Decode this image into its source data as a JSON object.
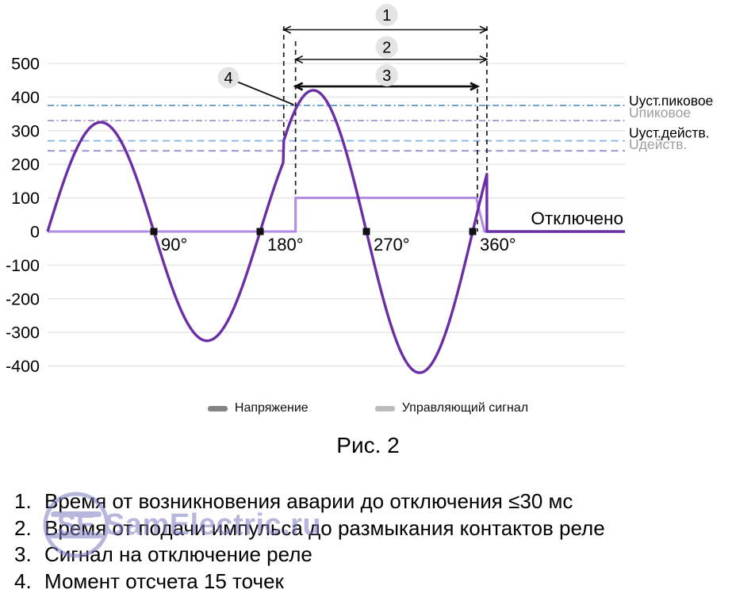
{
  "chart_data": {
    "type": "line",
    "title": "Рис. 2",
    "grid": true,
    "y_axis": {
      "min": -400,
      "max": 500,
      "ticks": [
        500,
        400,
        300,
        200,
        100,
        0,
        -100,
        -200,
        -300,
        -400
      ]
    },
    "x_axis": {
      "span_degrees": 489,
      "tick_degrees": [
        90,
        180,
        270,
        360
      ],
      "tick_labels": [
        "90°",
        "180°",
        "270°",
        "360°"
      ]
    },
    "series": [
      {
        "name": "Напряжение",
        "type": "sine",
        "color": "#6c2ea6",
        "normal_amplitude": 325,
        "fault_amplitude": 420,
        "cycles_per_360deg": 2,
        "fault_start_deg": 200,
        "cutoff_deg": 372
      },
      {
        "name": "Управляющий сигнал",
        "type": "step",
        "color": "#b28ce0",
        "level": 100,
        "pulse_on_deg": 210,
        "rampdown_start_deg": 363,
        "rampdown_end_deg": 370
      }
    ],
    "thresholds": [
      {
        "label": "Uуст.пиковое",
        "value": 375,
        "color": "#4583bb",
        "dash": "dashdot",
        "label_color": "#000000"
      },
      {
        "label": "Uпиковое",
        "value": 330,
        "color": "#9282c4",
        "dash": "dashdot",
        "label_color": "#9e9e9e"
      },
      {
        "label": "Uуст.действ.",
        "value": 270,
        "color": "#86b7e8",
        "dash": "dash",
        "label_color": "#000000"
      },
      {
        "label": "Uдейств.",
        "value": 240,
        "color": "#a391d6",
        "dash": "dash",
        "label_color": "#9e9e9e"
      }
    ],
    "annotations": {
      "arrows": [
        {
          "num": "1",
          "from_deg": 200,
          "to_deg": 372,
          "bold": false
        },
        {
          "num": "2",
          "from_deg": 210,
          "to_deg": 372,
          "bold": false
        },
        {
          "num": "3",
          "from_deg": 210,
          "to_deg": 364,
          "bold": true
        }
      ],
      "callout": {
        "num": "4",
        "points_to_deg": 210
      },
      "disconnected_label": "Отключено",
      "badge_fill": "#e4e4e4"
    }
  },
  "legend": [
    {
      "label": "Напряжение",
      "swatch": "#848484"
    },
    {
      "label": "Управляющий сигнал",
      "swatch": "#bcbcbc"
    }
  ],
  "caption": "Рис. 2",
  "notes": [
    "Время от возникновения аварии до отключения ≤30 мс",
    "Время от подачи импульса до размыкания контактов реле",
    "Сигнал на отключение реле",
    "Момент отсчета 15 точек"
  ],
  "watermark": {
    "logo_text": "SE",
    "text": "SamElectric.ru",
    "color": "#7d7dc2"
  }
}
